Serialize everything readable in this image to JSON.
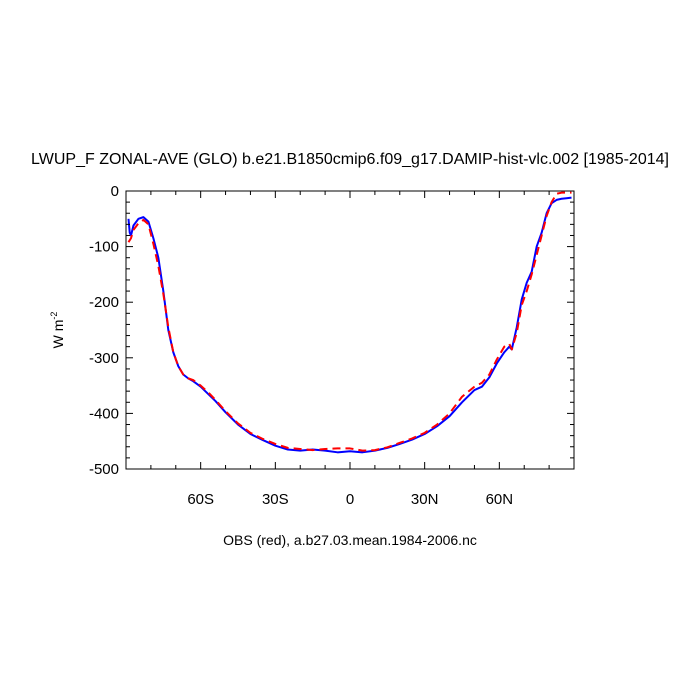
{
  "title": "LWUP_F ZONAL-AVE (GLO) b.e21.B1850cmip6.f09_g17.DAMIP-hist-vlc.002 [1985-2014]",
  "footer": "OBS (red), a.b27.03.mean.1984-2006.nc",
  "chart_data": {
    "type": "line",
    "title": "LWUP_F ZONAL-AVE (GLO) b.e21.B1850cmip6.f09_g17.DAMIP-hist-vlc.002 [1985-2014]",
    "xlabel": "",
    "ylabel": "W m",
    "ylabel_superscript": "-2",
    "xlim": [
      -90,
      90
    ],
    "ylim": [
      -500,
      0
    ],
    "xticks": [
      -60,
      -30,
      0,
      30,
      60
    ],
    "xtick_labels": [
      "60S",
      "30S",
      "0",
      "30N",
      "60N"
    ],
    "yticks": [
      0,
      -100,
      -200,
      -300,
      -400,
      -500
    ],
    "ytick_labels": [
      "0",
      "-100",
      "-200",
      "-300",
      "-400",
      "-500"
    ],
    "grid": false,
    "series": [
      {
        "color": "#0000ff",
        "dash": "solid",
        "x": [
          -89,
          -88.5,
          -88,
          -87,
          -85,
          -83,
          -81,
          -79,
          -77,
          -75,
          -73,
          -71,
          -69,
          -67,
          -65,
          -63,
          -60,
          -57,
          -54,
          -50,
          -45,
          -40,
          -35,
          -30,
          -25,
          -20,
          -15,
          -10,
          -5,
          0,
          5,
          10,
          15,
          20,
          25,
          30,
          35,
          40,
          45,
          50,
          53,
          56,
          59,
          62,
          64,
          65,
          66,
          67,
          69,
          71,
          73,
          75,
          77,
          79,
          81,
          83,
          85,
          87,
          89
        ],
        "y": [
          -50,
          -75,
          -80,
          -62,
          -50,
          -47,
          -55,
          -85,
          -120,
          -180,
          -250,
          -290,
          -315,
          -330,
          -337,
          -342,
          -352,
          -365,
          -378,
          -398,
          -420,
          -437,
          -448,
          -458,
          -465,
          -467,
          -465,
          -467,
          -470,
          -468,
          -470,
          -467,
          -462,
          -455,
          -447,
          -437,
          -423,
          -405,
          -380,
          -358,
          -352,
          -335,
          -310,
          -290,
          -280,
          -285,
          -265,
          -245,
          -195,
          -165,
          -145,
          -100,
          -75,
          -40,
          -22,
          -16,
          -14,
          -13,
          -12
        ]
      },
      {
        "color": "#ff0000",
        "dash": "dashed",
        "x": [
          -89,
          -88,
          -87,
          -85,
          -83,
          -81,
          -79,
          -77,
          -75,
          -73,
          -71,
          -69,
          -67,
          -65,
          -63,
          -60,
          -57,
          -54,
          -50,
          -45,
          -40,
          -35,
          -30,
          -25,
          -20,
          -15,
          -10,
          -5,
          0,
          5,
          10,
          15,
          20,
          25,
          30,
          35,
          40,
          45,
          50,
          53,
          56,
          59,
          62,
          64,
          65,
          66,
          67,
          69,
          71,
          73,
          75,
          77,
          79,
          81,
          83,
          85,
          87,
          89
        ],
        "y": [
          -92,
          -85,
          -70,
          -58,
          -52,
          -60,
          -95,
          -135,
          -185,
          -245,
          -290,
          -315,
          -330,
          -337,
          -340,
          -350,
          -362,
          -376,
          -396,
          -418,
          -435,
          -446,
          -455,
          -462,
          -464,
          -466,
          -464,
          -463,
          -463,
          -467,
          -466,
          -461,
          -453,
          -445,
          -435,
          -420,
          -400,
          -370,
          -352,
          -345,
          -330,
          -303,
          -280,
          -275,
          -285,
          -270,
          -255,
          -205,
          -180,
          -150,
          -115,
          -80,
          -45,
          -20,
          -5,
          -3,
          -3,
          -3
        ]
      }
    ]
  }
}
